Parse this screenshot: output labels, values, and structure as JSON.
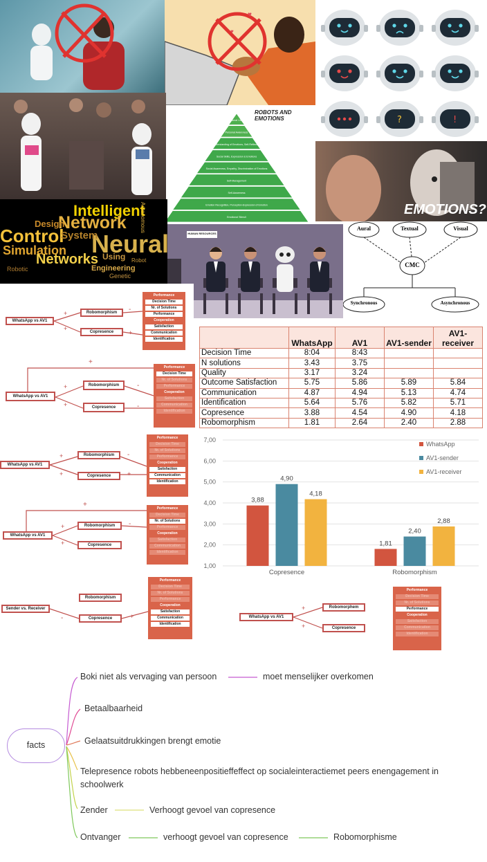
{
  "collage": {
    "robots_emotions_title": "ROBOTS AND EMOTIONS",
    "emotions_caption": "EMOTIONS?",
    "human_resources_sign": "HUMAN RESOURCES",
    "wordcloud_words": [
      "Intelligent",
      "Network",
      "Control",
      "Neural",
      "Design",
      "Simulation",
      "Networks",
      "System",
      "Using",
      "Engineering",
      "Robotic",
      "Genetic",
      "Autonomous",
      "Robot"
    ],
    "pyramid_levels": [
      "Emotional Literacy",
      "Personal Awareness",
      "Understanding of Emotions, Self-Reflection",
      "Social Skills, Expression & Emotions",
      "Social Awareness, Empathy, Discrimination of Emotions",
      "Self-Management",
      "Self-Awareness",
      "Emotion Recognition, Perception-Expression of Emotion",
      "Emotional Stimuli"
    ],
    "cmc": {
      "center": "CMC",
      "top": [
        "Aural",
        "Textual",
        "Visual"
      ],
      "bottom": [
        "Synchronous",
        "Asynchronous"
      ]
    }
  },
  "diagrams": {
    "whatsapp_vs_av1": "WhatsApp vs AV1",
    "sender_vs_receiver": "Sender vs. Receiver",
    "robomorphism": "Robomorphism",
    "robomorphism_alt": "Robomorphem",
    "copresence": "Copresence",
    "plus": "+",
    "minus": "-",
    "performance": "Performance",
    "cooperation": "Cooperation",
    "decision_time": "Decision Time",
    "nr_solutions": "Nr. of Solutions",
    "satisfaction": "Satisfaction",
    "communication": "Communication",
    "identification": "Identification"
  },
  "table": {
    "headers": [
      "",
      "WhatsApp",
      "AV1",
      "AV1-sender",
      "AV1-receiver"
    ],
    "rows": [
      [
        "Decision Time",
        "8:04",
        "8:43",
        "",
        ""
      ],
      [
        "N solutions",
        "3.43",
        "3.75",
        "",
        ""
      ],
      [
        "Quality",
        "3.17",
        "3.24",
        "",
        ""
      ],
      [
        "Outcome Satisfaction",
        "5.75",
        "5.86",
        "5.89",
        "5.84"
      ],
      [
        "Communication",
        "4.87",
        "4.94",
        "5.13",
        "4.74"
      ],
      [
        "Identification",
        "5.64",
        "5.76",
        "5.82",
        "5.71"
      ],
      [
        "Copresence",
        "3.88",
        "4.54",
        "4.90",
        "4.18"
      ],
      [
        "Robomorphism",
        "1.81",
        "2.64",
        "2.40",
        "2.88"
      ]
    ]
  },
  "chart_data": {
    "type": "bar",
    "categories": [
      "Copresence",
      "Robomorphism"
    ],
    "series": [
      {
        "name": "WhatsApp",
        "values": [
          3.88,
          1.81
        ],
        "color": "#d2553f",
        "labels": [
          "3,88",
          "1,81"
        ]
      },
      {
        "name": "AV1-sender",
        "values": [
          4.9,
          2.4
        ],
        "color": "#4a8aa0",
        "labels": [
          "4,90",
          "2,40"
        ]
      },
      {
        "name": "AV1-receiver",
        "values": [
          4.18,
          2.88
        ],
        "color": "#f2b33f",
        "labels": [
          "4,18",
          "2,88"
        ]
      }
    ],
    "ylim": [
      1.0,
      7.0
    ],
    "yticks": [
      "1,00",
      "2,00",
      "3,00",
      "4,00",
      "5,00",
      "6,00",
      "7,00"
    ],
    "grid": true,
    "legend": "top-right"
  },
  "mindmap": {
    "root": "facts",
    "branches": [
      {
        "text": "Boki niet als vervaging van persoon",
        "child": "moet menselijker overkomen"
      },
      {
        "text": "Betaalbaarheid"
      },
      {
        "text": "Gelaatsuitdrukkingen brengt emotie"
      },
      {
        "text": "Telepresence robots hebbeneenpositieffeffect op socialeinteractiemet peers enengagement in schoolwerk"
      },
      {
        "text": "Zender",
        "child": "Verhoogt gevoel van copresence"
      },
      {
        "text": "Ontvanger",
        "child": "verhoogt gevoel van copresence",
        "grandchild": "Robomorphisme"
      }
    ]
  }
}
